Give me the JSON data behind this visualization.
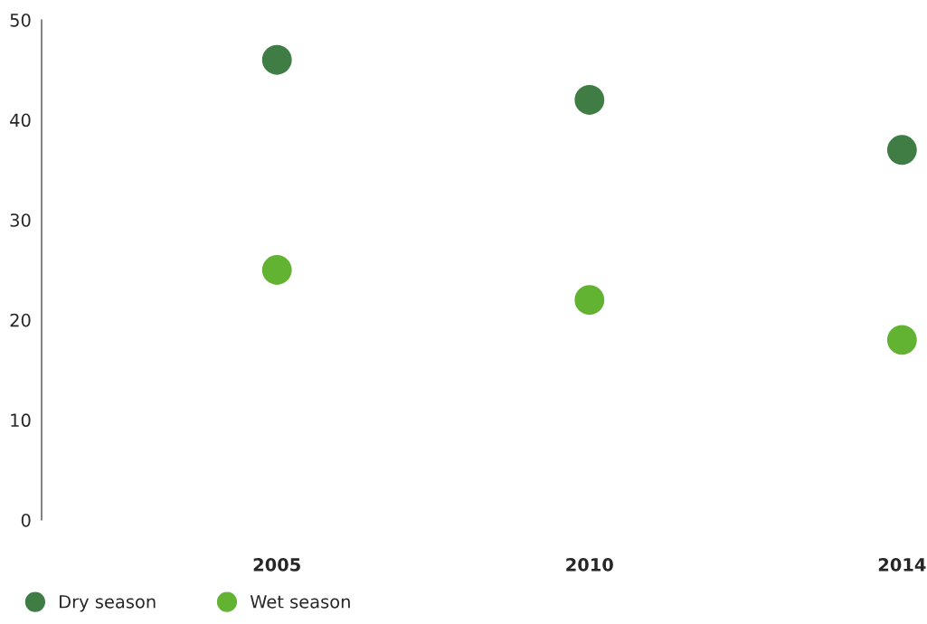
{
  "chart_data": {
    "type": "scatter",
    "categories": [
      "2005",
      "2010",
      "2014"
    ],
    "series": [
      {
        "name": "Dry season",
        "color": "#3f7d45",
        "values": [
          46,
          42,
          37
        ]
      },
      {
        "name": "Wet season",
        "color": "#62b332",
        "values": [
          25,
          22,
          18
        ]
      }
    ],
    "ylim": [
      0,
      50
    ],
    "yticks": [
      0,
      10,
      20,
      30,
      40,
      50
    ],
    "grid": false,
    "legend": "bottom left",
    "marker": "circle"
  }
}
